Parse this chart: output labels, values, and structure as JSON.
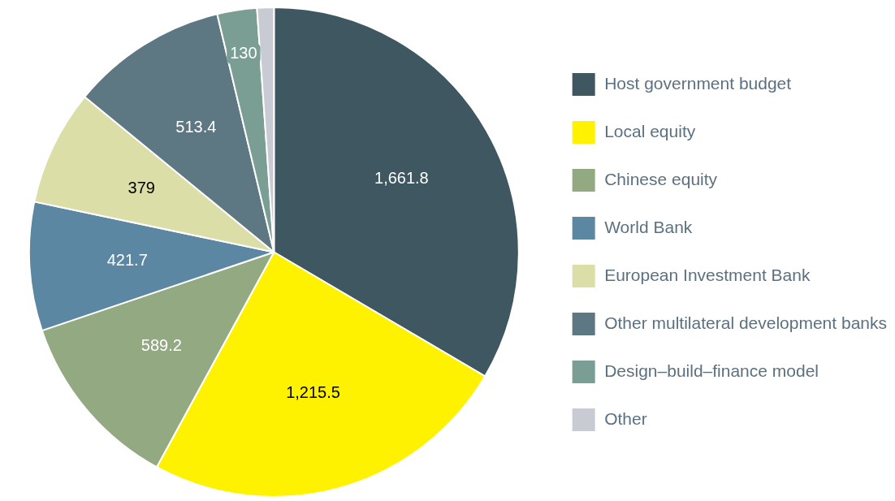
{
  "chart_data": {
    "type": "pie",
    "categories": [
      "Host government budget",
      "Local equity",
      "Chinese equity",
      "World Bank",
      "European Investment Bank",
      "Other multilateral development banks",
      "Design–build–finance model",
      "Other"
    ],
    "values": [
      1661.8,
      1215.5,
      589.2,
      421.7,
      379,
      513.4,
      130,
      55
    ],
    "value_labels": [
      "1,661.8",
      "1,215.5",
      "589.2",
      "421.7",
      "379",
      "513.4",
      "130",
      null
    ],
    "colors": [
      "#3f5760",
      "#fff200",
      "#93a981",
      "#5b87a3",
      "#dbdea6",
      "#5d7783",
      "#7a9e93",
      "#c9cbd4"
    ],
    "legend": "right"
  }
}
